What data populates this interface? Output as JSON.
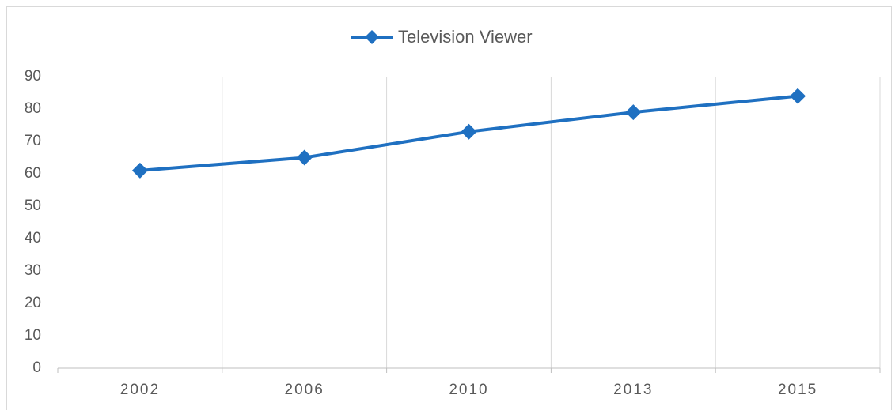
{
  "chart_data": {
    "type": "line",
    "categories": [
      "2002",
      "2006",
      "2010",
      "2013",
      "2015"
    ],
    "series": [
      {
        "name": "Television Viewer",
        "color": "#1f70c1",
        "values": [
          61,
          65,
          73,
          79,
          84
        ]
      }
    ],
    "ylim": [
      0,
      90
    ],
    "yticks": [
      0,
      10,
      20,
      30,
      40,
      50,
      60,
      70,
      80,
      90
    ],
    "grid": true,
    "legend": "top"
  }
}
